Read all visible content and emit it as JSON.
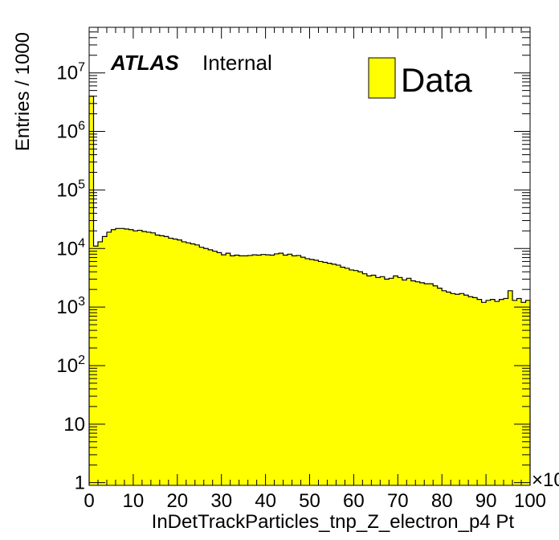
{
  "chart_data": {
    "type": "bar",
    "xlabel": "InDetTrackParticles_tnp_Z_electron_p4 Pt",
    "ylabel": "Entries / 1000",
    "x_multiplier_label": "×10",
    "xlim": [
      0,
      100
    ],
    "ylim": [
      0.9,
      60000000
    ],
    "y_scale": "log",
    "grid": false,
    "legend_position": "top-right",
    "x_tick_labels": [
      "0",
      "10",
      "20",
      "30",
      "40",
      "50",
      "60",
      "70",
      "80",
      "90",
      "100"
    ],
    "y_tick_labels": [
      {
        "value": 1,
        "base": "1",
        "exp": ""
      },
      {
        "value": 10,
        "base": "10",
        "exp": ""
      },
      {
        "value": 100,
        "base": "10",
        "exp": "2"
      },
      {
        "value": 1000,
        "base": "10",
        "exp": "3"
      },
      {
        "value": 10000,
        "base": "10",
        "exp": "4"
      },
      {
        "value": 100000,
        "base": "10",
        "exp": "5"
      },
      {
        "value": 1000000,
        "base": "10",
        "exp": "6"
      },
      {
        "value": 10000000,
        "base": "10",
        "exp": "7"
      }
    ],
    "bin_width": 1,
    "series": [
      {
        "name": "Data",
        "color": "#ffff00",
        "edge_color": "#000000",
        "values": [
          4000000,
          11000,
          13000,
          16000,
          19000,
          21000,
          22000,
          22000,
          21500,
          21000,
          20000,
          20500,
          19500,
          19000,
          18500,
          17000,
          16500,
          16000,
          15000,
          14500,
          14000,
          13000,
          12500,
          12000,
          11500,
          10500,
          10000,
          9500,
          9000,
          8500,
          7800,
          8300,
          7500,
          7700,
          7500,
          7500,
          7600,
          7800,
          7700,
          7900,
          7800,
          7700,
          8100,
          8300,
          7700,
          8000,
          7500,
          7600,
          7100,
          6700,
          6500,
          6300,
          6000,
          5800,
          5600,
          5400,
          5200,
          4800,
          4600,
          4300,
          4200,
          4000,
          3700,
          3400,
          3500,
          3200,
          3300,
          3000,
          3100,
          3400,
          3200,
          2900,
          3100,
          2800,
          2700,
          2600,
          2500,
          2500,
          2300,
          2100,
          1900,
          1800,
          1700,
          1650,
          1700,
          1600,
          1500,
          1450,
          1350,
          1200,
          1300,
          1350,
          1250,
          1350,
          1400,
          1900,
          1300,
          1400,
          1200,
          1300
        ]
      }
    ]
  },
  "annotations": {
    "atlas": "ATLAS",
    "internal": "Internal"
  },
  "legend": {
    "label": "Data"
  }
}
